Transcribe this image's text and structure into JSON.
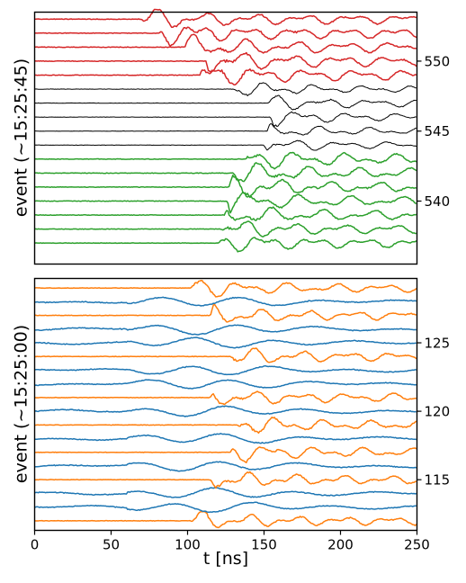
{
  "chart_data": [
    {
      "type": "line",
      "panel": "top",
      "ylabel": "event (~15:25:45)",
      "xlim": [
        0,
        250
      ],
      "ylim": [
        535.5,
        553.5
      ],
      "right_ticks": [
        {
          "value": 540,
          "label": "540"
        },
        {
          "value": 545,
          "label": "545"
        },
        {
          "value": 550,
          "label": "550"
        }
      ],
      "traces": [
        {
          "event": 537,
          "color": "#2ca02c",
          "onset": 120,
          "amp": 0.7
        },
        {
          "event": 538,
          "color": "#2ca02c",
          "onset": 122,
          "amp": 0.7
        },
        {
          "event": 539,
          "color": "#2ca02c",
          "onset": 124,
          "amp": 0.75
        },
        {
          "event": 540,
          "color": "#2ca02c",
          "onset": 126,
          "amp": 0.75
        },
        {
          "event": 541,
          "color": "#2ca02c",
          "onset": 127,
          "amp": 0.8
        },
        {
          "event": 542,
          "color": "#2ca02c",
          "onset": 130,
          "amp": 0.8
        },
        {
          "event": 543,
          "color": "#2ca02c",
          "onset": 138,
          "amp": 0.8
        },
        {
          "event": 544,
          "color": "#000000",
          "onset": 150,
          "amp": 0.5
        },
        {
          "event": 545,
          "color": "#000000",
          "onset": 152,
          "amp": 0.5
        },
        {
          "event": 546,
          "color": "#000000",
          "onset": 154,
          "amp": 0.55
        },
        {
          "event": 547,
          "color": "#000000",
          "onset": 152,
          "amp": 0.55
        },
        {
          "event": 548,
          "color": "#000000",
          "onset": 130,
          "amp": 0.55
        },
        {
          "event": 549,
          "color": "#d62728",
          "onset": 108,
          "amp": 0.85
        },
        {
          "event": 550,
          "color": "#d62728",
          "onset": 112,
          "amp": 0.85
        },
        {
          "event": 551,
          "color": "#d62728",
          "onset": 98,
          "amp": 0.85
        },
        {
          "event": 552,
          "color": "#d62728",
          "onset": 82,
          "amp": 0.85
        },
        {
          "event": 553,
          "color": "#d62728",
          "onset": 70,
          "amp": 0.8
        }
      ]
    },
    {
      "type": "line",
      "panel": "bottom",
      "xlabel": "t [ns]",
      "ylabel": "event (~15:25:00)",
      "xlim": [
        0,
        250
      ],
      "ylim": [
        111.3,
        129.7
      ],
      "xticks": [
        0,
        50,
        100,
        150,
        200,
        250
      ],
      "right_ticks": [
        {
          "value": 115,
          "label": "115"
        },
        {
          "value": 120,
          "label": "120"
        },
        {
          "value": 125,
          "label": "125"
        }
      ],
      "traces": [
        {
          "event": 112,
          "color": "#ff7f0e",
          "onset": 102,
          "amp": 0.7
        },
        {
          "event": 113,
          "color": "#1f77b4",
          "onset": 60,
          "amp": 0.6
        },
        {
          "event": 114,
          "color": "#1f77b4",
          "onset": 60,
          "amp": 0.6
        },
        {
          "event": 115,
          "color": "#ff7f0e",
          "onset": 115,
          "amp": 0.7
        },
        {
          "event": 116,
          "color": "#1f77b4",
          "onset": 60,
          "amp": 0.6
        },
        {
          "event": 117,
          "color": "#ff7f0e",
          "onset": 128,
          "amp": 0.7
        },
        {
          "event": 118,
          "color": "#1f77b4",
          "onset": 60,
          "amp": 0.6
        },
        {
          "event": 119,
          "color": "#ff7f0e",
          "onset": 132,
          "amp": 0.7
        },
        {
          "event": 120,
          "color": "#1f77b4",
          "onset": 60,
          "amp": 0.6
        },
        {
          "event": 121,
          "color": "#ff7f0e",
          "onset": 115,
          "amp": 0.7
        },
        {
          "event": 122,
          "color": "#1f77b4",
          "onset": 60,
          "amp": 0.6
        },
        {
          "event": 123,
          "color": "#1f77b4",
          "onset": 60,
          "amp": 0.6
        },
        {
          "event": 124,
          "color": "#ff7f0e",
          "onset": 128,
          "amp": 0.7
        },
        {
          "event": 125,
          "color": "#1f77b4",
          "onset": 60,
          "amp": 0.6
        },
        {
          "event": 126,
          "color": "#1f77b4",
          "onset": 60,
          "amp": 0.6
        },
        {
          "event": 127,
          "color": "#ff7f0e",
          "onset": 115,
          "amp": 0.7
        },
        {
          "event": 128,
          "color": "#1f77b4",
          "onset": 60,
          "amp": 0.6
        },
        {
          "event": 129,
          "color": "#ff7f0e",
          "onset": 102,
          "amp": 0.7
        }
      ]
    }
  ]
}
